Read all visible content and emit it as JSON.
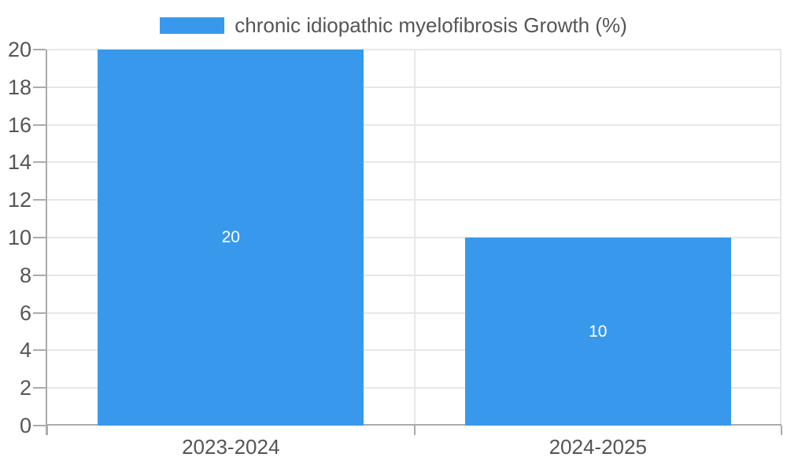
{
  "chart_data": {
    "type": "bar",
    "title": "",
    "legend_label": "chronic idiopathic myelofibrosis Growth (%)",
    "legend_position": "top-center",
    "categories": [
      "2023-2024",
      "2024-2025"
    ],
    "series": [
      {
        "name": "chronic idiopathic myelofibrosis Growth (%)",
        "values": [
          20,
          10
        ]
      }
    ],
    "bar_value_labels": [
      "20",
      "10"
    ],
    "xlabel": "",
    "ylabel": "",
    "ylim": [
      0,
      20
    ],
    "yticks": [
      0,
      2,
      4,
      6,
      8,
      10,
      12,
      14,
      16,
      18,
      20
    ],
    "grid": true
  },
  "colors": {
    "bar": "#3899EC",
    "grid": "#e7e7e7",
    "axis": "#ababab",
    "text": "#555555",
    "bar_label": "#ffffff",
    "background": "#ffffff"
  }
}
